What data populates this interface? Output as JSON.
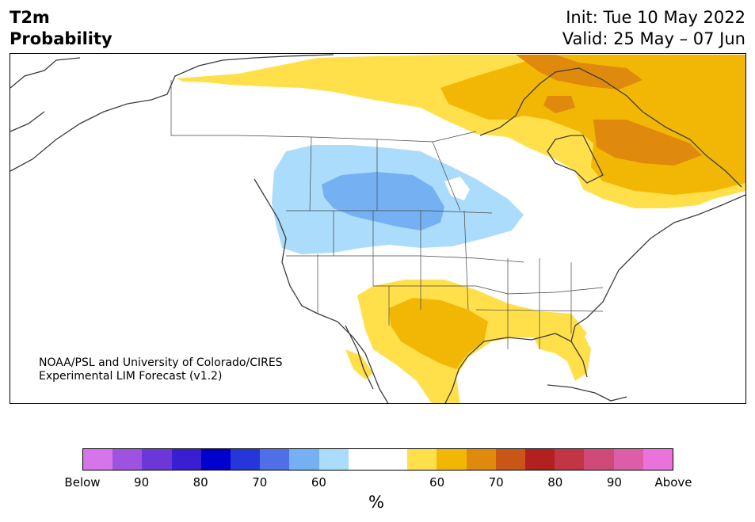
{
  "header": {
    "title_line1": "T2m",
    "title_line2": "Probability",
    "init": "Init: Tue 10 May 2022",
    "valid": "Valid: 25 May – 07 Jun"
  },
  "credit": {
    "line1": "NOAA/PSL and University of Colorado/CIRES",
    "line2": "Experimental LIM Forecast (v1.2)"
  },
  "colorbar": {
    "colors": [
      "#d674e9",
      "#9b53e0",
      "#6b37d8",
      "#3a1ed2",
      "#0000cc",
      "#2637d9",
      "#4e6fe6",
      "#75b0f2",
      "#acdcfb",
      "#ffffff",
      "#ffffff",
      "#ffe04a",
      "#f2b705",
      "#df8a0c",
      "#c95616",
      "#b32020",
      "#c23545",
      "#d04a79",
      "#dd5ea8",
      "#e973da"
    ],
    "tick_labels": [
      "Below",
      "90",
      "80",
      "70",
      "60",
      "60",
      "70",
      "80",
      "90",
      "Above"
    ],
    "unit": "%"
  },
  "map": {
    "region": "North America",
    "colors": {
      "below_50_60": "#acdcfb",
      "below_60_70": "#75b0f2",
      "above_50_60": "#ffe04a",
      "above_60_70": "#f2b705",
      "above_70_80": "#df8a0c",
      "coastline": "#3c3c3c"
    }
  }
}
